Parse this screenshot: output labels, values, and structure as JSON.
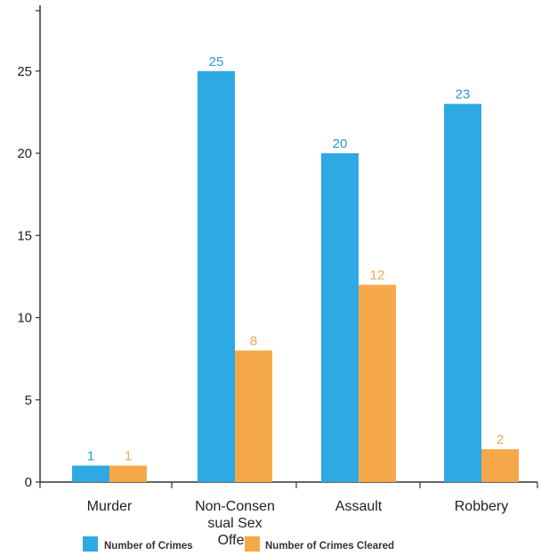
{
  "chart_data": {
    "type": "bar",
    "categories": [
      "Murder",
      "Non-Consensual Sex Offenses",
      "Assault",
      "Robbery"
    ],
    "category_label_lines": [
      [
        "Murder"
      ],
      [
        "Non-Consen",
        "sual Sex",
        "Offen"
      ],
      [
        "Assault"
      ],
      [
        "Robbery"
      ]
    ],
    "series": [
      {
        "name": "Number of Crimes",
        "values": [
          1,
          25,
          20,
          23
        ],
        "color": "#2ea9e3",
        "label_color": "#2b9ad6"
      },
      {
        "name": "Number of Crimes Cleared",
        "values": [
          1,
          8,
          12,
          2
        ],
        "color": "#f5a84a",
        "label_color": "#f0a850"
      }
    ],
    "y_ticks": [
      0,
      5,
      10,
      15,
      20,
      25
    ],
    "ylim": [
      0,
      29
    ],
    "title": "",
    "xlabel": "",
    "ylabel": "",
    "grid": false,
    "legend_position": "bottom-left"
  }
}
